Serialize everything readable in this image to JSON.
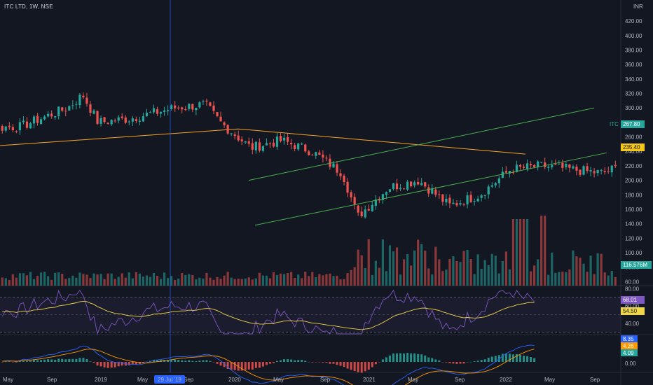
{
  "header": {
    "title": "ITC LTD, 1W, NSE"
  },
  "price_axis": {
    "currency": "INR",
    "ticks": [
      "420.00",
      "400.00",
      "380.00",
      "360.00",
      "340.00",
      "320.00",
      "300.00",
      "280.00",
      "260.00",
      "240.00",
      "220.00",
      "200.00",
      "180.00",
      "160.00",
      "140.00",
      "120.00",
      "100.00",
      "80.00",
      "60.00"
    ]
  },
  "badges": {
    "symbol": "ITC",
    "last_price": "267.80",
    "ma_value": "235.40",
    "volume": "116.576M",
    "rsi": "68.01",
    "rsi_ma": "54.50",
    "macd": "8.35",
    "signal": "4.26",
    "hist": "4.09"
  },
  "rsi_axis": {
    "ticks": [
      "80.00",
      "60.00",
      "40.00"
    ]
  },
  "macd_axis": {
    "ticks": [
      "0.00"
    ]
  },
  "x_axis": {
    "labels": [
      "May",
      "Sep",
      "2019",
      "May",
      "Sep",
      "2020",
      "May",
      "Sep",
      "2021",
      "May",
      "Sep",
      "2022",
      "May",
      "Sep"
    ],
    "crosshair_label": "29 Jul '19"
  },
  "colors": {
    "up": "#26a69a",
    "down": "#ef5350",
    "ma": "#f5a623",
    "channel": "#4caf50",
    "rsi": "#7e57c2",
    "rsi_ma": "#f0d64a",
    "macd": "#2962ff",
    "signal": "#ff9800",
    "crosshair": "#2962ff"
  },
  "chart_data": {
    "type": "candlestick",
    "symbol": "ITC LTD",
    "interval": "1W",
    "exchange": "NSE",
    "price_range": [
      130,
      430
    ],
    "approx_close_path": [
      {
        "date": "2018-05",
        "close": 275
      },
      {
        "date": "2018-08",
        "close": 300
      },
      {
        "date": "2018-09",
        "close": 318
      },
      {
        "date": "2018-10",
        "close": 280
      },
      {
        "date": "2018-12",
        "close": 285
      },
      {
        "date": "2019-03",
        "close": 300
      },
      {
        "date": "2019-05",
        "close": 305
      },
      {
        "date": "2019-06",
        "close": 280
      },
      {
        "date": "2019-08",
        "close": 245
      },
      {
        "date": "2019-10",
        "close": 255
      },
      {
        "date": "2019-12",
        "close": 240
      },
      {
        "date": "2020-02",
        "close": 210
      },
      {
        "date": "2020-03",
        "close": 150
      },
      {
        "date": "2020-05",
        "close": 190
      },
      {
        "date": "2020-07",
        "close": 200
      },
      {
        "date": "2020-09",
        "close": 165
      },
      {
        "date": "2020-11",
        "close": 180
      },
      {
        "date": "2021-01",
        "close": 215
      },
      {
        "date": "2021-03",
        "close": 220
      },
      {
        "date": "2021-05",
        "close": 215
      },
      {
        "date": "2021-07",
        "close": 210
      },
      {
        "date": "2021-09",
        "close": 225
      },
      {
        "date": "2021-10",
        "close": 260
      },
      {
        "date": "2021-11",
        "close": 230
      },
      {
        "date": "2021-12",
        "close": 220
      },
      {
        "date": "2022-01",
        "close": 215
      },
      {
        "date": "2022-02",
        "close": 230
      },
      {
        "date": "2022-03",
        "close": 250
      },
      {
        "date": "2022-04",
        "close": 267.8
      }
    ],
    "last_close": 267.8,
    "moving_average_last": 235.4,
    "volume_last": "116.576M",
    "rsi_last": 68.01,
    "rsi_ma_last": 54.5,
    "macd_last": 8.35,
    "signal_last": 4.26,
    "hist_last": 4.09
  }
}
